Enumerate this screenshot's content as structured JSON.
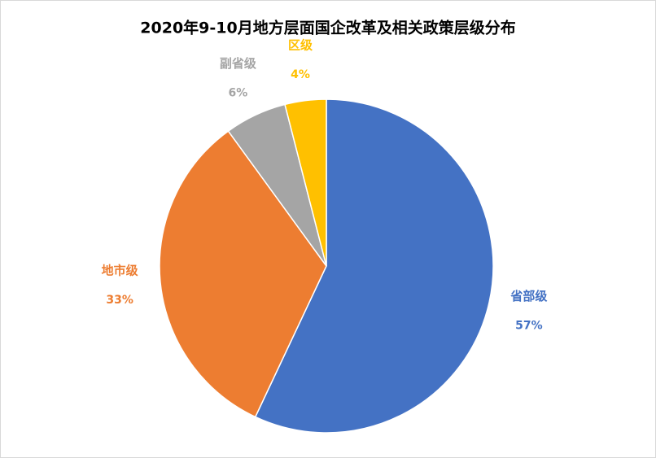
{
  "chart_data": {
    "type": "pie",
    "title": "2020年9-10月地方层面国企改革及相关政策层级分布",
    "categories": [
      "省部级",
      "地市级",
      "副省级",
      "区级"
    ],
    "values": [
      57,
      33,
      6,
      4
    ],
    "value_labels": [
      "57%",
      "33%",
      "6%",
      "4%"
    ],
    "colors": [
      "#4472c4",
      "#ed7d31",
      "#a5a5a5",
      "#ffc000"
    ]
  }
}
